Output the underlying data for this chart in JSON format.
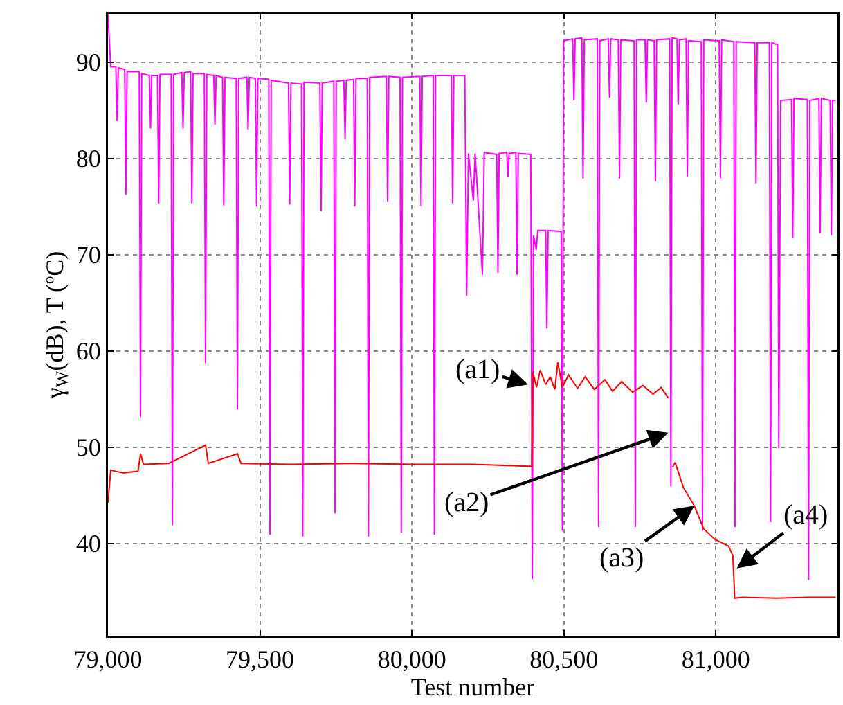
{
  "chart_data": {
    "type": "line",
    "xlabel": "Test number",
    "ylabel": "γ$_{W}$(dB), T (ºC)",
    "xlim": [
      79000,
      81400
    ],
    "xticks": [
      {
        "value": 79000,
        "label": "79,000"
      },
      {
        "value": 79500,
        "label": "79,500"
      },
      {
        "value": 80000,
        "label": "80,000"
      },
      {
        "value": 80500,
        "label": "80,500"
      },
      {
        "value": 81000,
        "label": "81,000"
      }
    ],
    "ylim": [
      30.4,
      95
    ],
    "yticks": [
      40,
      50,
      60,
      70,
      80,
      90
    ],
    "grid": true,
    "marker": "none",
    "line_style": "solid",
    "series": [
      {
        "color": "#ff00ff",
        "x": [
          79000,
          79009,
          79026,
          79030,
          79034,
          79055,
          79059,
          79063,
          79103,
          79107,
          79111,
          79136,
          79140,
          79144,
          79163,
          79167,
          79171,
          79208,
          79212,
          79216,
          79243,
          79247,
          79251,
          79272,
          79276,
          79280,
          79317,
          79321,
          79325,
          79348,
          79352,
          79356,
          79377,
          79381,
          79385,
          79422,
          79426,
          79430,
          79457,
          79461,
          79465,
          79485,
          79489,
          79493,
          79529,
          79533,
          79537,
          79594,
          79598,
          79602,
          79637,
          79641,
          79645,
          79697,
          79701,
          79705,
          79743,
          79747,
          79751,
          79776,
          79780,
          79784,
          79808,
          79812,
          79816,
          79853,
          79857,
          79861,
          79916,
          79920,
          79924,
          79961,
          79965,
          79969,
          80026,
          80030,
          80034,
          80070,
          80074,
          80078,
          80130,
          80134,
          80138,
          80174,
          80180,
          80186,
          80202,
          80208,
          80232,
          80238,
          80279,
          80283,
          80287,
          80312,
          80316,
          80320,
          80342,
          80346,
          80350,
          80391,
          80396,
          80400,
          80409,
          80414,
          80440,
          80444,
          80448,
          80491,
          80495,
          80499,
          80529,
          80533,
          80537,
          80559,
          80563,
          80567,
          80610,
          80614,
          80618,
          80646,
          80650,
          80654,
          80679,
          80683,
          80687,
          80731,
          80735,
          80739,
          80767,
          80771,
          80775,
          80797,
          80801,
          80805,
          80848,
          80852,
          80856,
          80872,
          80876,
          80880,
          80902,
          80906,
          80910,
          80952,
          80956,
          80960,
          81011,
          81015,
          81019,
          81059,
          81063,
          81067,
          81128,
          81132,
          81136,
          81176,
          81180,
          81184,
          81203,
          81207,
          81213,
          81249,
          81253,
          81257,
          81301,
          81305,
          81309,
          81339,
          81343,
          81347,
          81376,
          81380,
          81384,
          81394
        ],
        "values": [
          95,
          89.5,
          89.5,
          83.9,
          89.4,
          89.2,
          76.2,
          89,
          89,
          53.1,
          88.8,
          88.6,
          83.1,
          88.6,
          88.6,
          75.3,
          88.7,
          88.7,
          41.9,
          88.7,
          88.9,
          83.1,
          88.9,
          89,
          75.3,
          88.8,
          88.8,
          58.7,
          88.7,
          88.6,
          83.5,
          88.6,
          88.4,
          75.1,
          88.4,
          88.3,
          53.9,
          88.3,
          88.4,
          83,
          88.4,
          88.3,
          75,
          88.3,
          88.2,
          40.9,
          88.1,
          87.8,
          75.2,
          87.8,
          87.7,
          40.7,
          87.9,
          87.8,
          74.5,
          87.8,
          88,
          43.1,
          88,
          88.1,
          82,
          88.1,
          88.2,
          75,
          88.3,
          88.3,
          40.7,
          88.4,
          88.5,
          75.5,
          88.5,
          88.4,
          41.1,
          88.4,
          88.5,
          75,
          88.5,
          88.6,
          40.9,
          88.6,
          88.6,
          75.3,
          88.6,
          88.6,
          65.7,
          80.5,
          75.6,
          80.5,
          67.9,
          80.6,
          80.4,
          68.1,
          80.5,
          80.6,
          78,
          80.5,
          80.6,
          67.9,
          80.5,
          80.4,
          36.3,
          72,
          70.5,
          72.5,
          72.5,
          62.3,
          72.5,
          72.4,
          41.3,
          92.2,
          92.4,
          86,
          92.4,
          92.5,
          77.9,
          92.3,
          92.4,
          41.7,
          92.2,
          92.4,
          86.3,
          92.4,
          92.3,
          77.9,
          92.3,
          92.2,
          41.7,
          92.3,
          92.3,
          85.8,
          92.3,
          92.2,
          77.6,
          92.3,
          92.4,
          45.9,
          92.5,
          92.4,
          85.6,
          92.3,
          92.4,
          78.1,
          92.2,
          92.1,
          41.3,
          92.3,
          92.2,
          77.9,
          92.3,
          92.1,
          41.7,
          92.1,
          92,
          77.4,
          92,
          92,
          42.2,
          92,
          91.8,
          49.9,
          86,
          86.1,
          71.7,
          86.2,
          86.1,
          36.2,
          86,
          86.2,
          72.2,
          86.2,
          86,
          72,
          86,
          86
        ]
      },
      {
        "color": "#ff0000",
        "x": [
          79000,
          79009,
          79050,
          79099,
          79107,
          79117,
          79200,
          79321,
          79330,
          79426,
          79438,
          79600,
          79800,
          80003,
          80200,
          80394,
          80398,
          80410,
          80422,
          80440,
          80455,
          80470,
          80480,
          80495,
          80515,
          80545,
          80570,
          80600,
          80635,
          80660,
          80690,
          80726,
          80760,
          80793,
          80820,
          80843,
          null,
          80857,
          80866,
          80893,
          80929,
          80960,
          80997,
          81042,
          81056,
          81062,
          81087,
          81200,
          81300,
          81394
        ],
        "values": [
          44.2,
          47.6,
          47.3,
          47.5,
          49.3,
          48.2,
          48.3,
          50.2,
          48.3,
          49.3,
          48.3,
          48.2,
          48.3,
          48.2,
          48.2,
          48,
          57.8,
          56.2,
          58,
          56.5,
          57.3,
          56,
          58.8,
          56.2,
          57.5,
          56.1,
          57.3,
          56,
          57,
          55.8,
          56.8,
          55.7,
          56.4,
          55.5,
          56.2,
          55.1,
          null,
          47.9,
          48.4,
          45.8,
          43.9,
          41.5,
          40.4,
          39.7,
          38.7,
          34.3,
          34.4,
          34.3,
          34.4,
          34.4
        ]
      }
    ],
    "annotations": [
      {
        "text": "(a1)",
        "x": 80382,
        "y": 56.5
      },
      {
        "text": "(a2)",
        "x": 80843,
        "y": 51.5
      },
      {
        "text": "(a3)",
        "x": 80929,
        "y": 43.9
      },
      {
        "text": "(a4)",
        "x": 81069,
        "y": 37.4
      }
    ]
  }
}
